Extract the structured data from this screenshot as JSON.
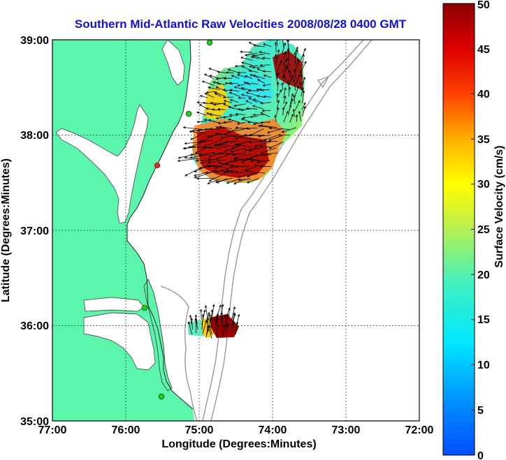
{
  "title": "Southern Mid-Atlantic Raw Velocities 2008/08/28 0400 GMT",
  "xaxis": {
    "label": "Longitude (Degrees:Minutes)",
    "ticks": [
      "77:00",
      "76:00",
      "75:00",
      "74:00",
      "73:00",
      "72:00"
    ],
    "range": [
      -77,
      -72
    ]
  },
  "yaxis": {
    "label": "Latitude (Degrees:Minutes)",
    "ticks": [
      "35:00",
      "36:00",
      "37:00",
      "38:00",
      "39:00"
    ],
    "range": [
      35,
      39
    ]
  },
  "colorbar": {
    "label": "Surface Velocity (cm/s)",
    "ticks": [
      "0",
      "5",
      "10",
      "15",
      "20",
      "25",
      "30",
      "35",
      "40",
      "45",
      "50"
    ],
    "range": [
      0,
      50
    ]
  },
  "grid": true,
  "colors": {
    "title": "#1010d8",
    "land": "#5cf5ac",
    "bathymetry": "#999999",
    "station": "#22cc22",
    "station_alt": "#e03020"
  }
}
